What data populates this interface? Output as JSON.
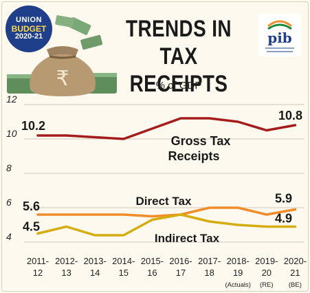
{
  "badge": {
    "line1": "UNION",
    "line2": "BUDGET",
    "line3": "2020-21"
  },
  "header": {
    "title_line1": "TRENDS IN",
    "title_line2": "TAX RECEIPTS",
    "subtitle": "% of GDP"
  },
  "logo": {
    "text": "pib"
  },
  "colors": {
    "background": "#fdf9ee",
    "gross": "#a51c1c",
    "direct": "#f08c2a",
    "indirect": "#d6ad10",
    "label_text": "#1a1a1a"
  },
  "chart_data": {
    "type": "line",
    "title": "TRENDS IN TAX RECEIPTS",
    "subtitle": "% of GDP",
    "ylim": [
      4,
      12
    ],
    "yticks": [
      4,
      6,
      8,
      10,
      12
    ],
    "categories": [
      [
        "2011-",
        "12"
      ],
      [
        "2012-",
        "13"
      ],
      [
        "2013-",
        "14"
      ],
      [
        "2014-",
        "15"
      ],
      [
        "2015-",
        "16"
      ],
      [
        "2016-",
        "17"
      ],
      [
        "2017-",
        "18"
      ],
      [
        "2018-",
        "19",
        "(Actuals)"
      ],
      [
        "2019-",
        "20",
        "(RE)"
      ],
      [
        "2020-",
        "21",
        "(BE)"
      ]
    ],
    "series": [
      {
        "name": "Gross Tax Receipts",
        "color": "#a51c1c",
        "values": [
          10.2,
          10.2,
          10.1,
          10.0,
          10.6,
          11.2,
          11.2,
          11.0,
          10.5,
          10.8
        ],
        "start_label": "10.2",
        "end_label": "10.8"
      },
      {
        "name": "Direct Tax",
        "color": "#f08c2a",
        "values": [
          5.6,
          5.6,
          5.6,
          5.6,
          5.5,
          5.6,
          6.0,
          6.0,
          5.6,
          5.9
        ],
        "start_label": "5.6",
        "end_label": "5.9"
      },
      {
        "name": "Indirect Tax",
        "color": "#d6ad10",
        "values": [
          4.5,
          4.9,
          4.4,
          4.4,
          5.3,
          5.6,
          5.2,
          5.0,
          4.9,
          4.9
        ],
        "start_label": "4.5",
        "end_label": "4.9"
      }
    ],
    "series_labels": {
      "gross_line1": "Gross Tax",
      "gross_line2": "Receipts",
      "direct": "Direct Tax",
      "indirect": "Indirect Tax"
    }
  }
}
